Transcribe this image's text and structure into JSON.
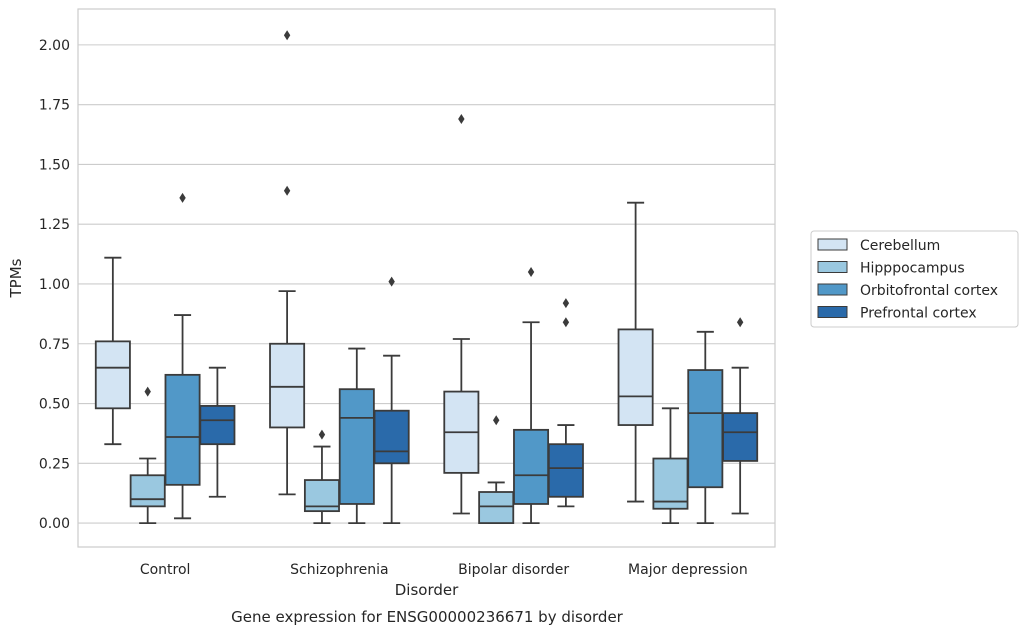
{
  "caption": "Gene expression for ENSG00000236671 by disorder",
  "chart_data": {
    "type": "box",
    "xlabel": "Disorder",
    "ylabel": "TPMs",
    "ylim": [
      -0.1,
      2.15
    ],
    "yticks": [
      "0.00",
      "0.25",
      "0.50",
      "0.75",
      "1.00",
      "1.25",
      "1.50",
      "1.75",
      "2.00"
    ],
    "categories": [
      "Control",
      "Schizophrenia",
      "Bipolar disorder",
      "Major depression"
    ],
    "grid": "horizontal",
    "legend_placement": "right",
    "series": [
      {
        "name": "Cerebellum",
        "color": "#d3e4f3",
        "boxes": [
          {
            "whislo": 0.33,
            "q1": 0.48,
            "med": 0.65,
            "q3": 0.76,
            "whishi": 1.11,
            "fliers": []
          },
          {
            "whislo": 0.12,
            "q1": 0.4,
            "med": 0.57,
            "q3": 0.75,
            "whishi": 0.97,
            "fliers": [
              1.39,
              2.04
            ]
          },
          {
            "whislo": 0.04,
            "q1": 0.21,
            "med": 0.38,
            "q3": 0.55,
            "whishi": 0.77,
            "fliers": [
              1.69
            ]
          },
          {
            "whislo": 0.09,
            "q1": 0.41,
            "med": 0.53,
            "q3": 0.81,
            "whishi": 1.34,
            "fliers": []
          }
        ]
      },
      {
        "name": "Hipppocampus",
        "color": "#9ac8e0",
        "boxes": [
          {
            "whislo": 0.0,
            "q1": 0.07,
            "med": 0.1,
            "q3": 0.2,
            "whishi": 0.27,
            "fliers": [
              0.55
            ]
          },
          {
            "whislo": 0.0,
            "q1": 0.05,
            "med": 0.07,
            "q3": 0.18,
            "whishi": 0.32,
            "fliers": [
              0.37
            ]
          },
          {
            "whislo": 0.0,
            "q1": 0.0,
            "med": 0.07,
            "q3": 0.13,
            "whishi": 0.17,
            "fliers": [
              0.43
            ]
          },
          {
            "whislo": 0.0,
            "q1": 0.06,
            "med": 0.09,
            "q3": 0.27,
            "whishi": 0.48,
            "fliers": []
          }
        ]
      },
      {
        "name": "Orbitofrontal cortex",
        "color": "#5198c8",
        "boxes": [
          {
            "whislo": 0.02,
            "q1": 0.16,
            "med": 0.36,
            "q3": 0.62,
            "whishi": 0.87,
            "fliers": [
              1.36
            ]
          },
          {
            "whislo": 0.0,
            "q1": 0.08,
            "med": 0.44,
            "q3": 0.56,
            "whishi": 0.73,
            "fliers": []
          },
          {
            "whislo": 0.0,
            "q1": 0.08,
            "med": 0.2,
            "q3": 0.39,
            "whishi": 0.84,
            "fliers": [
              1.05
            ]
          },
          {
            "whislo": 0.0,
            "q1": 0.15,
            "med": 0.46,
            "q3": 0.64,
            "whishi": 0.8,
            "fliers": []
          }
        ]
      },
      {
        "name": "Prefrontal cortex",
        "color": "#2a6aaa",
        "boxes": [
          {
            "whislo": 0.11,
            "q1": 0.33,
            "med": 0.43,
            "q3": 0.49,
            "whishi": 0.65,
            "fliers": []
          },
          {
            "whislo": 0.0,
            "q1": 0.25,
            "med": 0.3,
            "q3": 0.47,
            "whishi": 0.7,
            "fliers": [
              1.01
            ]
          },
          {
            "whislo": 0.07,
            "q1": 0.11,
            "med": 0.23,
            "q3": 0.33,
            "whishi": 0.41,
            "fliers": [
              0.84,
              0.92
            ]
          },
          {
            "whislo": 0.04,
            "q1": 0.26,
            "med": 0.38,
            "q3": 0.46,
            "whishi": 0.65,
            "fliers": [
              0.84
            ]
          }
        ]
      }
    ]
  }
}
